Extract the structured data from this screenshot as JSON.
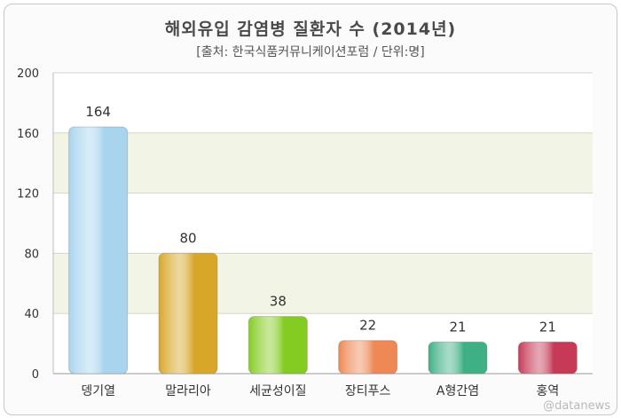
{
  "chart_data": {
    "type": "bar",
    "title": "해외유입 감염병 질환자 수 (2014년)",
    "subtitle": "[출처: 한국식품커뮤니케이션포럼 / 단위:명]",
    "categories": [
      "뎅기열",
      "말라리아",
      "세균성이질",
      "장티푸스",
      "A형간염",
      "홍역"
    ],
    "values": [
      164,
      80,
      38,
      22,
      21,
      21
    ],
    "ylim": [
      0,
      200
    ],
    "yticks": [
      0,
      40,
      80,
      120,
      160,
      200
    ],
    "bar_colors": [
      "#a9d4ee",
      "#d8a72a",
      "#84cc22",
      "#ee8855",
      "#3fb085",
      "#c63a57"
    ],
    "grid": true,
    "legend": "none"
  },
  "watermark": "@datanews"
}
